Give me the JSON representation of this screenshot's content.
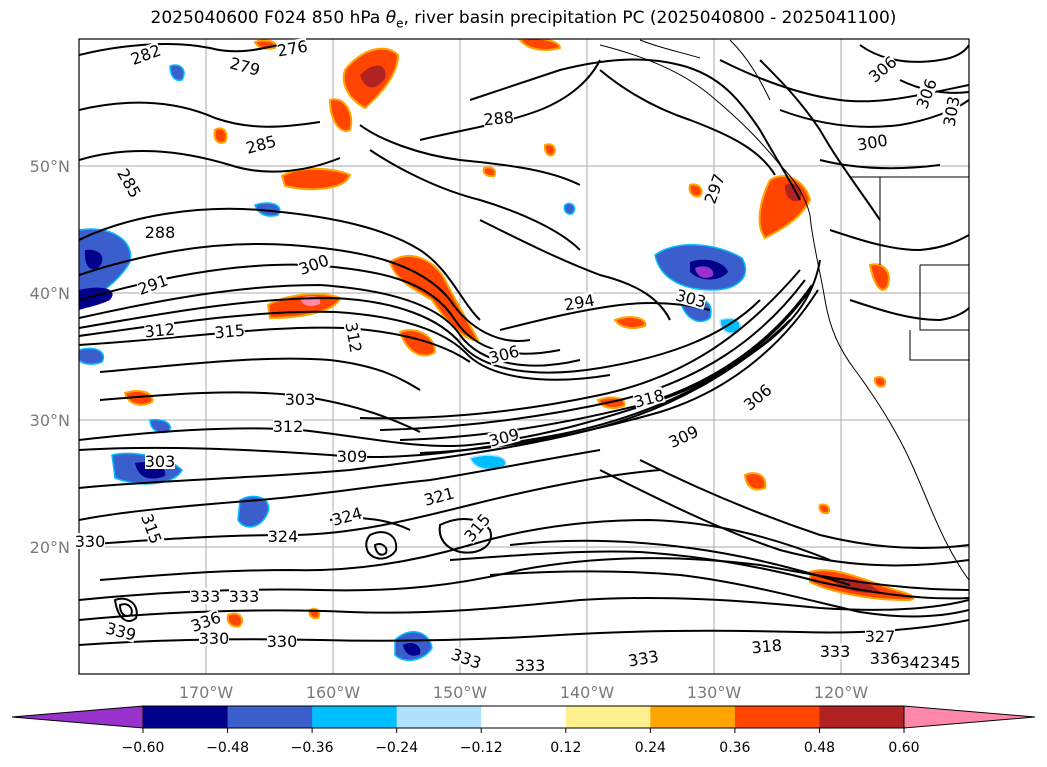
{
  "title": {
    "prefix": "2025040600 F024 850 hPa ",
    "symbol": "θ",
    "subscript": "e",
    "suffix": ", river basin precipitation PC (2025040800 - 2025041100)"
  },
  "map": {
    "lat_labels": [
      "50°N",
      "40°N",
      "30°N",
      "20°N"
    ],
    "lon_labels": [
      "170°W",
      "160°W",
      "150°W",
      "140°W",
      "130°W",
      "120°W"
    ],
    "grid": true,
    "contour_labels": [
      "282",
      "276",
      "279",
      "285",
      "285",
      "288",
      "288",
      "291",
      "300",
      "294",
      "297",
      "303",
      "306",
      "306",
      "303",
      "300",
      "312",
      "315",
      "312",
      "306",
      "303",
      "312",
      "309",
      "306",
      "318",
      "309",
      "309",
      "315",
      "303",
      "321",
      "324",
      "324",
      "315",
      "330",
      "333",
      "333",
      "339",
      "336",
      "330",
      "330",
      "333",
      "333",
      "333",
      "318",
      "333",
      "327",
      "336",
      "342345"
    ]
  },
  "colorbar": {
    "ticks": [
      "−0.60",
      "−0.48",
      "−0.36",
      "−0.24",
      "−0.12",
      "0.12",
      "0.24",
      "0.36",
      "0.48",
      "0.60"
    ],
    "colors": [
      "#9932cc",
      "#00008b",
      "#3a5fcd",
      "#00bfff",
      "#b0e2ff",
      "#ffffff",
      "#fff08f",
      "#ffa500",
      "#ff4500",
      "#b22222",
      "#ff88aa"
    ],
    "extend": "both"
  }
}
